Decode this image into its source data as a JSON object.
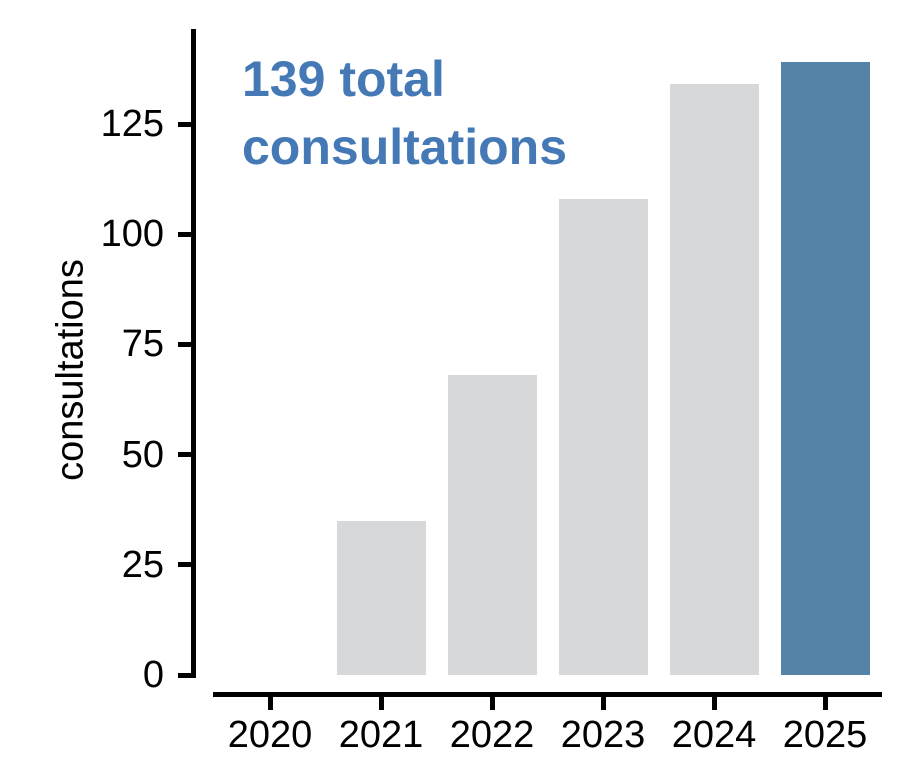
{
  "chart_data": {
    "type": "bar",
    "categories": [
      "2020",
      "2021",
      "2022",
      "2023",
      "2024",
      "2025"
    ],
    "values": [
      0,
      35,
      68,
      108,
      134,
      139
    ],
    "highlight_index": 5,
    "annotation_text": "139 total consultations",
    "annotation_lines": [
      "139 total",
      "consultations"
    ],
    "xlabel": "",
    "ylabel": "consultations",
    "yticks": [
      0,
      25,
      50,
      75,
      100,
      125
    ],
    "ylim": [
      0,
      147
    ],
    "grid": false,
    "legend": false,
    "colors": {
      "bar_default": "#d7d8da",
      "bar_highlight": "#5583a8",
      "annotation": "#4479b6",
      "axis": "#000000"
    }
  }
}
